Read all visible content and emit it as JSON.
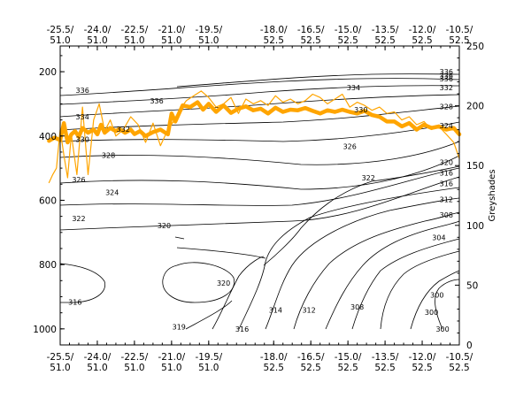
{
  "chart_data": {
    "type": "line",
    "title": "",
    "x_ticks": [
      {
        "lon": "-25.5/",
        "lat": "51.0"
      },
      {
        "lon": "-24.0/",
        "lat": "51.0"
      },
      {
        "lon": "-22.5/",
        "lat": "51.0"
      },
      {
        "lon": "-21.0/",
        "lat": "51.0"
      },
      {
        "lon": "-19.5/",
        "lat": "51.0"
      },
      {
        "lon": "-18.0/",
        "lat": "52.5"
      },
      {
        "lon": "-16.5/",
        "lat": "52.5"
      },
      {
        "lon": "-15.0/",
        "lat": "52.5"
      },
      {
        "lon": "-13.5/",
        "lat": "52.5"
      },
      {
        "lon": "-12.0/",
        "lat": "52.5"
      },
      {
        "lon": "-10.5/",
        "lat": "52.5"
      }
    ],
    "x_tick_positions": [
      0,
      1,
      2,
      3,
      4,
      5.75,
      6.75,
      7.75,
      8.75,
      9.75,
      10.75
    ],
    "x_range": [
      0,
      10.75
    ],
    "left_axis": {
      "label": "",
      "range": [
        1050,
        120
      ],
      "ticks": [
        "200",
        "400",
        "600",
        "800",
        "1000"
      ],
      "tick_values": [
        200,
        400,
        600,
        800,
        1000
      ]
    },
    "right_axis": {
      "label": "Greyshades",
      "range": [
        0,
        250
      ],
      "ticks": [
        "0",
        "50",
        "100",
        "150",
        "200",
        "250"
      ],
      "tick_values": [
        0,
        50,
        100,
        150,
        200,
        250
      ]
    },
    "contour_labels": [
      {
        "text": "336",
        "x": 10.4,
        "y": 200
      },
      {
        "text": "336",
        "x": 10.4,
        "y": 212
      },
      {
        "text": "336",
        "x": 10.4,
        "y": 222
      },
      {
        "text": "332",
        "x": 10.4,
        "y": 250
      },
      {
        "text": "328",
        "x": 10.4,
        "y": 308
      },
      {
        "text": "324",
        "x": 10.4,
        "y": 368
      },
      {
        "text": "320",
        "x": 10.4,
        "y": 482
      },
      {
        "text": "316",
        "x": 10.4,
        "y": 515
      },
      {
        "text": "316",
        "x": 10.4,
        "y": 548
      },
      {
        "text": "312",
        "x": 10.4,
        "y": 598
      },
      {
        "text": "308",
        "x": 10.4,
        "y": 645
      },
      {
        "text": "304",
        "x": 10.2,
        "y": 716
      },
      {
        "text": "300",
        "x": 10.15,
        "y": 895
      },
      {
        "text": "300",
        "x": 10.3,
        "y": 1000
      },
      {
        "text": "336",
        "x": 0.6,
        "y": 257
      },
      {
        "text": "336",
        "x": 2.6,
        "y": 290
      },
      {
        "text": "334",
        "x": 7.9,
        "y": 250
      },
      {
        "text": "330",
        "x": 8.1,
        "y": 318
      },
      {
        "text": "334",
        "x": 0.6,
        "y": 340
      },
      {
        "text": "332",
        "x": 1.7,
        "y": 378
      },
      {
        "text": "330",
        "x": 0.6,
        "y": 410
      },
      {
        "text": "328",
        "x": 1.3,
        "y": 460
      },
      {
        "text": "326",
        "x": 7.8,
        "y": 432
      },
      {
        "text": "326",
        "x": 0.5,
        "y": 535
      },
      {
        "text": "322",
        "x": 8.3,
        "y": 530
      },
      {
        "text": "324",
        "x": 1.4,
        "y": 576
      },
      {
        "text": "322",
        "x": 0.5,
        "y": 656
      },
      {
        "text": "320",
        "x": 2.8,
        "y": 678
      },
      {
        "text": "320",
        "x": 4.4,
        "y": 858
      },
      {
        "text": "319",
        "x": 3.2,
        "y": 993
      },
      {
        "text": "316",
        "x": 0.4,
        "y": 917
      },
      {
        "text": "316",
        "x": 4.9,
        "y": 1000
      },
      {
        "text": "314",
        "x": 5.8,
        "y": 942
      },
      {
        "text": "312",
        "x": 6.7,
        "y": 942
      },
      {
        "text": "308",
        "x": 8.0,
        "y": 932
      },
      {
        "text": "300",
        "x": 10.0,
        "y": 948
      }
    ],
    "series": [
      {
        "style": "thick",
        "color": "#FFA500",
        "x": [
          -0.3,
          -0.15,
          0,
          0.1,
          0.2,
          0.3,
          0.4,
          0.5,
          0.6,
          0.75,
          0.9,
          1.0,
          1.1,
          1.2,
          1.35,
          1.5,
          1.6,
          1.75,
          1.9,
          2.0,
          2.15,
          2.3,
          2.5,
          2.7,
          2.9,
          3.0,
          3.1,
          3.3,
          3.5,
          3.7,
          3.85,
          4.0,
          4.2,
          4.4,
          4.6,
          4.8,
          5.0,
          5.2,
          5.4,
          5.6,
          5.8,
          6.0,
          6.2,
          6.4,
          6.6,
          6.8,
          7.0,
          7.2,
          7.4,
          7.6,
          7.8,
          8.0,
          8.2,
          8.4,
          8.6,
          8.8,
          9.0,
          9.2,
          9.4,
          9.6,
          9.8,
          10.0,
          10.2,
          10.4,
          10.6,
          10.75
        ],
        "y": [
          415,
          405,
          413,
          360,
          420,
          395,
          385,
          402,
          375,
          390,
          380,
          395,
          365,
          390,
          375,
          385,
          378,
          390,
          380,
          394,
          385,
          400,
          388,
          380,
          395,
          330,
          355,
          305,
          310,
          295,
          318,
          300,
          325,
          305,
          328,
          315,
          308,
          320,
          315,
          330,
          312,
          325,
          318,
          320,
          313,
          322,
          330,
          320,
          325,
          318,
          325,
          330,
          322,
          335,
          340,
          355,
          355,
          370,
          360,
          380,
          365,
          375,
          370,
          380,
          375,
          395
        ]
      },
      {
        "style": "thin",
        "color": "#FFA500",
        "x": [
          -0.3,
          -0.2,
          -0.1,
          0,
          0.1,
          0.2,
          0.3,
          0.45,
          0.6,
          0.75,
          0.9,
          1.05,
          1.2,
          1.35,
          1.5,
          1.7,
          1.9,
          2.1,
          2.3,
          2.5,
          2.7,
          2.9,
          3.05,
          3.2,
          3.4,
          3.6,
          3.8,
          4.0,
          4.2,
          4.4,
          4.6,
          4.8,
          5.0,
          5.2,
          5.4,
          5.6,
          5.8,
          6.0,
          6.2,
          6.4,
          6.6,
          6.8,
          7.0,
          7.2,
          7.4,
          7.6,
          7.8,
          8.0,
          8.2,
          8.4,
          8.6,
          8.8,
          9.0,
          9.2,
          9.4,
          9.6,
          9.8,
          10.0,
          10.2,
          10.4,
          10.6,
          10.75
        ],
        "y": [
          545,
          520,
          500,
          380,
          460,
          530,
          395,
          520,
          310,
          520,
          350,
          300,
          385,
          350,
          400,
          380,
          340,
          365,
          420,
          360,
          430,
          380,
          355,
          320,
          290,
          275,
          260,
          280,
          310,
          300,
          280,
          330,
          285,
          300,
          290,
          305,
          275,
          295,
          285,
          300,
          290,
          270,
          280,
          300,
          285,
          270,
          310,
          295,
          305,
          320,
          310,
          330,
          325,
          350,
          340,
          365,
          355,
          380,
          370,
          395,
          420,
          470
        ]
      }
    ]
  }
}
